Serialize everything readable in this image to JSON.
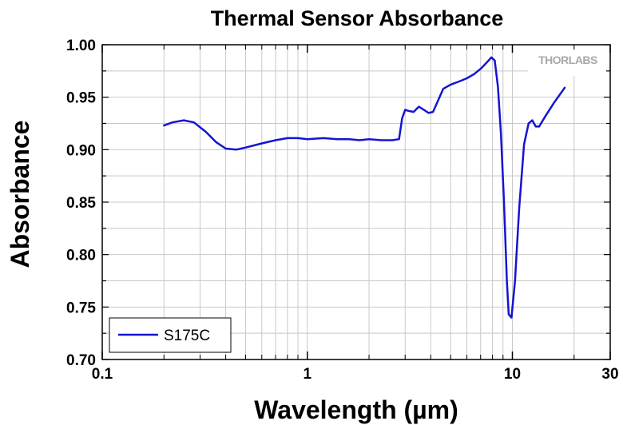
{
  "chart_data": {
    "type": "line",
    "title": "Thermal Sensor Absorbance",
    "xlabel": "Wavelength (µm)",
    "ylabel": "Absorbance",
    "x_scale": "log",
    "xlim": [
      0.1,
      30
    ],
    "ylim": [
      0.7,
      1.0
    ],
    "x_ticks": [
      {
        "value": 0.1,
        "label": "0.1"
      },
      {
        "value": 1,
        "label": "1"
      },
      {
        "value": 10,
        "label": "10"
      },
      {
        "value": 30,
        "label": "30"
      }
    ],
    "y_ticks": [
      {
        "value": 0.7,
        "label": "0.70"
      },
      {
        "value": 0.75,
        "label": "0.75"
      },
      {
        "value": 0.8,
        "label": "0.80"
      },
      {
        "value": 0.85,
        "label": "0.85"
      },
      {
        "value": 0.9,
        "label": "0.90"
      },
      {
        "value": 0.95,
        "label": "0.95"
      },
      {
        "value": 1.0,
        "label": "1.00"
      }
    ],
    "grid": true,
    "legend_position": "bottom-left",
    "logo": "THORLABS",
    "series": [
      {
        "name": "S175C",
        "color": "#1414d2",
        "x": [
          0.2,
          0.22,
          0.25,
          0.28,
          0.32,
          0.36,
          0.4,
          0.45,
          0.5,
          0.6,
          0.7,
          0.8,
          0.9,
          1.0,
          1.2,
          1.4,
          1.6,
          1.8,
          2.0,
          2.3,
          2.6,
          2.8,
          2.9,
          3.0,
          3.1,
          3.3,
          3.5,
          3.7,
          3.9,
          4.1,
          4.3,
          4.6,
          5.0,
          5.5,
          6.0,
          6.5,
          7.0,
          7.5,
          7.9,
          8.2,
          8.5,
          8.8,
          9.1,
          9.4,
          9.6,
          9.9,
          10.3,
          10.8,
          11.4,
          12.0,
          12.5,
          13.0,
          13.5,
          14.5,
          16.0,
          18.0
        ],
        "y": [
          0.923,
          0.926,
          0.928,
          0.926,
          0.917,
          0.907,
          0.901,
          0.9,
          0.902,
          0.906,
          0.909,
          0.911,
          0.911,
          0.91,
          0.911,
          0.91,
          0.91,
          0.909,
          0.91,
          0.909,
          0.909,
          0.91,
          0.93,
          0.938,
          0.937,
          0.936,
          0.941,
          0.938,
          0.935,
          0.936,
          0.945,
          0.958,
          0.962,
          0.965,
          0.968,
          0.972,
          0.977,
          0.983,
          0.988,
          0.985,
          0.96,
          0.915,
          0.85,
          0.775,
          0.743,
          0.74,
          0.775,
          0.845,
          0.905,
          0.925,
          0.928,
          0.922,
          0.922,
          0.932,
          0.945,
          0.959
        ]
      }
    ]
  }
}
